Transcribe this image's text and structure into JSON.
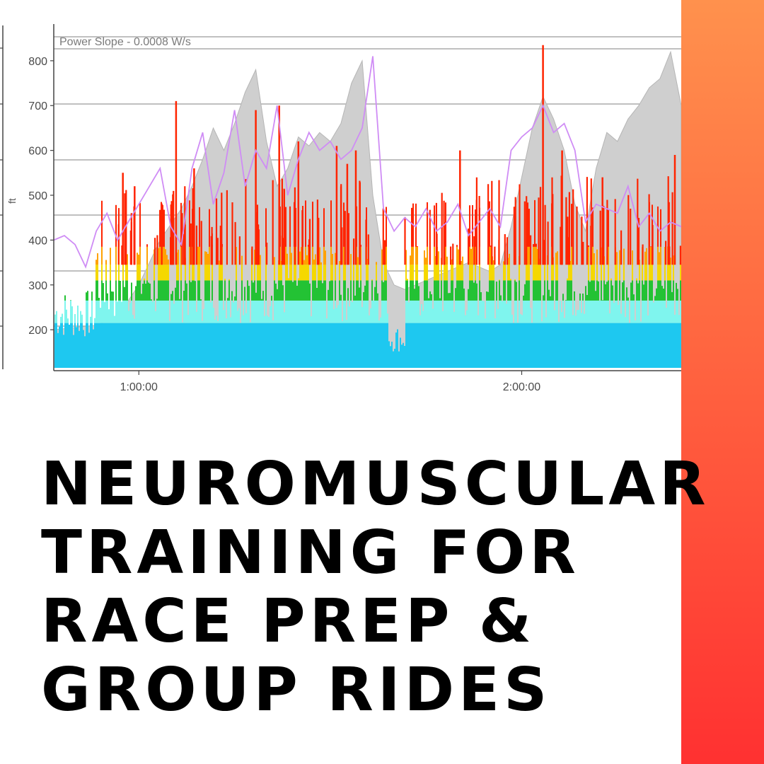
{
  "headline": {
    "lines": [
      "NEUROMUSCULAR",
      "TRAINING FOR",
      "RACE PREP &",
      "GROUP RIDES"
    ]
  },
  "accent": {
    "gradient_top": "#ff914d",
    "gradient_bottom": "#ff3131"
  },
  "chart_data": {
    "type": "area",
    "title": "",
    "xlabel": "",
    "ylabel": "ft",
    "annotation": "Power Slope - 0.0008 W/s",
    "x_tick_labels": [
      "1:00:00",
      "2:00:00"
    ],
    "x_ticks_sec": [
      3600,
      7200
    ],
    "xlim_sec": [
      2800,
      8700
    ],
    "y_tick_labels": [
      "200",
      "300",
      "400",
      "500",
      "600",
      "700",
      "800"
    ],
    "y_ticks": [
      200,
      300,
      400,
      500,
      600,
      700,
      800
    ],
    "ylim": [
      115,
      885
    ],
    "grid": true,
    "colors": {
      "altitude_fill": "#cfcfcf",
      "power_zones": [
        "#1ec8f0",
        "#7ff5ee",
        "#23c234",
        "#f5d800",
        "#ffa200",
        "#ff2400"
      ],
      "secondary_line": "#cf8cf5",
      "grid": "#9b9b9b"
    },
    "series": [
      {
        "name": "",
        "kind": "altitude_area",
        "x_sec": [
          2800,
          3000,
          3200,
          3400,
          3600,
          3800,
          4000,
          4100,
          4200,
          4300,
          4400,
          4500,
          4600,
          4700,
          4800,
          4900,
          5000,
          5100,
          5200,
          5300,
          5400,
          5500,
          5600,
          5700,
          5800,
          5900,
          6000,
          6100,
          6200,
          6300,
          6400,
          6500,
          6600,
          6700,
          6800,
          6900,
          7000,
          7100,
          7200,
          7300,
          7400,
          7500,
          7600,
          7700,
          7800,
          7900,
          8000,
          8100,
          8200,
          8300,
          8400,
          8500,
          8600,
          8700
        ],
        "values": [
          200,
          205,
          210,
          230,
          300,
          400,
          470,
          520,
          580,
          650,
          600,
          660,
          730,
          780,
          620,
          520,
          560,
          630,
          610,
          640,
          620,
          660,
          750,
          800,
          500,
          350,
          300,
          290,
          300,
          310,
          320,
          330,
          340,
          350,
          340,
          330,
          345,
          430,
          540,
          650,
          720,
          670,
          600,
          480,
          420,
          560,
          640,
          620,
          670,
          700,
          740,
          760,
          820,
          700
        ]
      },
      {
        "name": "",
        "kind": "secondary_line",
        "x_sec": [
          2800,
          2900,
          3000,
          3100,
          3200,
          3300,
          3400,
          3500,
          3600,
          3700,
          3800,
          3900,
          4000,
          4100,
          4200,
          4300,
          4400,
          4500,
          4600,
          4700,
          4800,
          4900,
          5000,
          5100,
          5200,
          5300,
          5400,
          5500,
          5600,
          5700,
          5800,
          5900,
          6000,
          6100,
          6200,
          6300,
          6400,
          6500,
          6600,
          6700,
          6800,
          6900,
          7000,
          7100,
          7200,
          7300,
          7400,
          7500,
          7600,
          7700,
          7800,
          7900,
          8000,
          8100,
          8200,
          8300,
          8400,
          8500,
          8600,
          8700
        ],
        "values": [
          400,
          410,
          390,
          340,
          420,
          460,
          400,
          440,
          480,
          520,
          560,
          430,
          390,
          560,
          640,
          480,
          550,
          690,
          520,
          600,
          560,
          700,
          500,
          580,
          640,
          600,
          620,
          580,
          600,
          650,
          810,
          470,
          420,
          450,
          430,
          470,
          420,
          440,
          480,
          410,
          440,
          470,
          430,
          600,
          630,
          650,
          700,
          640,
          660,
          600,
          440,
          480,
          470,
          460,
          520,
          430,
          460,
          420,
          440,
          430
        ]
      }
    ],
    "power_zone_bands_ft": [
      [
        115,
        215
      ],
      [
        215,
        265
      ],
      [
        265,
        310
      ],
      [
        310,
        345
      ],
      [
        345,
        385
      ],
      [
        385,
        835
      ]
    ],
    "sprint_peaks": [
      {
        "x_sec": 3450,
        "value": 550
      },
      {
        "x_sec": 3560,
        "value": 520
      },
      {
        "x_sec": 3950,
        "value": 710
      },
      {
        "x_sec": 4120,
        "value": 560
      },
      {
        "x_sec": 4700,
        "value": 690
      },
      {
        "x_sec": 4920,
        "value": 700
      },
      {
        "x_sec": 5100,
        "value": 620
      },
      {
        "x_sec": 5460,
        "value": 610
      },
      {
        "x_sec": 5560,
        "value": 570
      },
      {
        "x_sec": 5640,
        "value": 600
      },
      {
        "x_sec": 6620,
        "value": 600
      },
      {
        "x_sec": 7400,
        "value": 835
      },
      {
        "x_sec": 7580,
        "value": 600
      },
      {
        "x_sec": 7960,
        "value": 540
      },
      {
        "x_sec": 8640,
        "value": 590
      }
    ]
  }
}
